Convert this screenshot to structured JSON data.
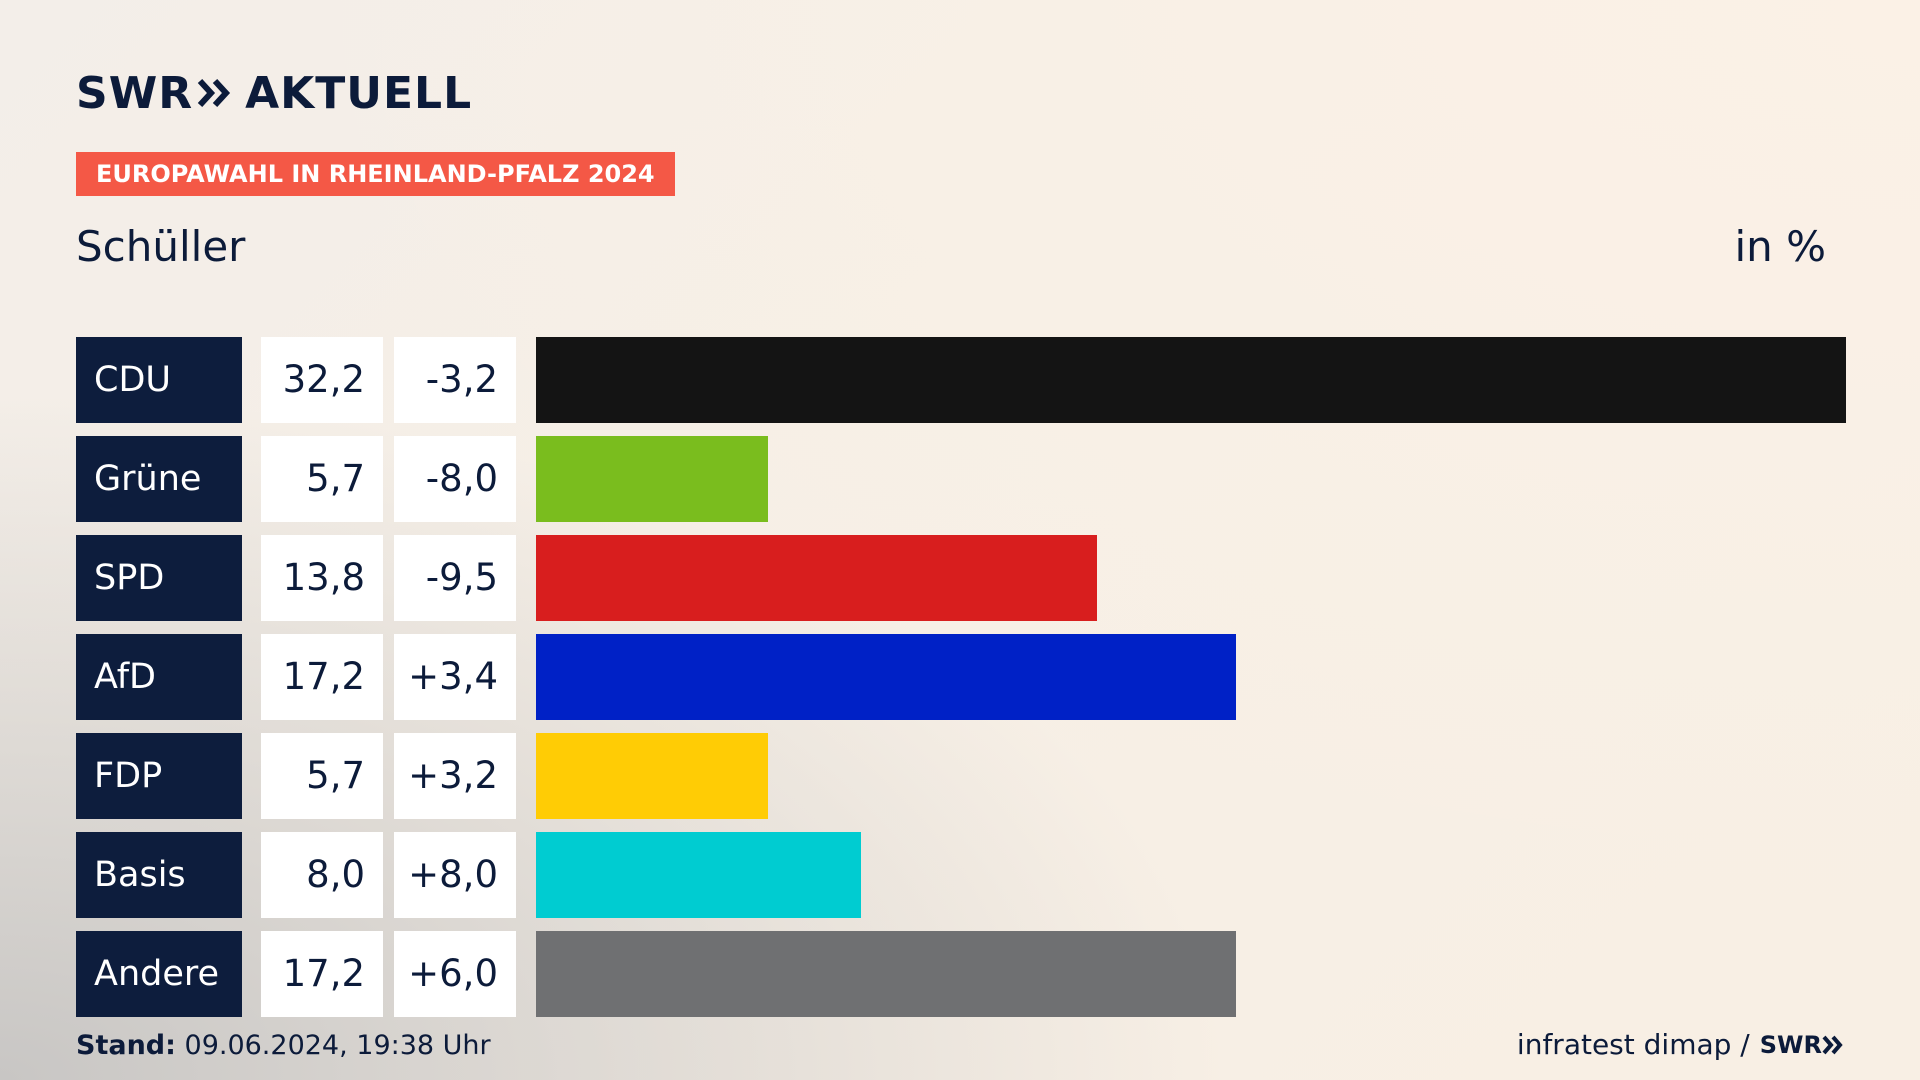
{
  "brand": {
    "logo_text_left": "SWR",
    "logo_text_right": "AKTUELL",
    "small_logo": "SWR"
  },
  "kicker": "EUROPAWAHL IN RHEINLAND-PFALZ 2024",
  "title": "Schüller",
  "unit": "in %",
  "footer": {
    "stand_label": "Stand:",
    "stand_value": "09.06.2024, 19:38 Uhr",
    "source": "infratest dimap /"
  },
  "colors": {
    "kicker": "#f45846",
    "party_cell": "#0d1d3d"
  },
  "chart_data": {
    "type": "bar",
    "orientation": "horizontal",
    "categories": [
      "CDU",
      "Grüne",
      "SPD",
      "AfD",
      "FDP",
      "Basis",
      "Andere"
    ],
    "values": [
      32.2,
      5.7,
      13.8,
      17.2,
      5.7,
      8.0,
      17.2
    ],
    "value_labels": [
      "32,2",
      "5,7",
      "13,8",
      "17,2",
      "5,7",
      "8,0",
      "17,2"
    ],
    "diff_labels": [
      "-3,2",
      "-8,0",
      "-9,5",
      "+3,4",
      "+3,2",
      "+8,0",
      "+6,0"
    ],
    "diffs": [
      -3.2,
      -8.0,
      -9.5,
      3.4,
      3.2,
      8.0,
      6.0
    ],
    "bar_colors": [
      "#141414",
      "#7abd1e",
      "#d81e1e",
      "#0021c6",
      "#ffcc05",
      "#00ccd1",
      "#6f7072"
    ],
    "xlim": [
      0,
      32.2
    ],
    "unit": "in %"
  }
}
